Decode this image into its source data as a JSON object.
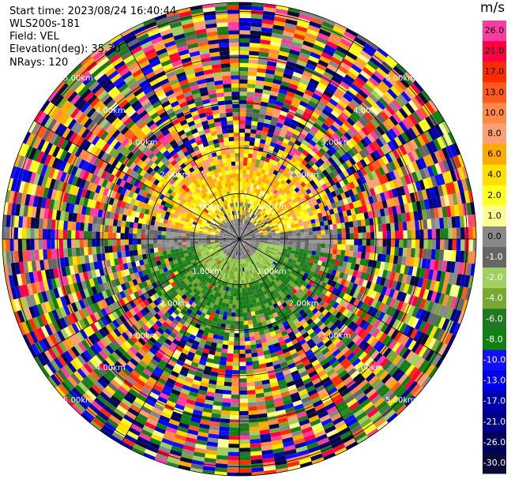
{
  "header": {
    "start_time": "Start time: 2023/08/24 16:40:44",
    "instrument": "WLS200s-181",
    "field": "Field: VEL",
    "elevation": "Elevation(deg): 35.30",
    "nrays": "NRays: 120"
  },
  "chart_data": {
    "type": "heatmap",
    "projection": "polar PPI",
    "title": "",
    "n_rays": 120,
    "range_rings_km": [
      1,
      2,
      3,
      4,
      5
    ],
    "range_ring_labels": [
      "1.00km",
      "2.00km",
      "3.00km",
      "4.00km",
      "5.00km"
    ],
    "max_range_km": 5.2,
    "colorbar": {
      "unit": "m/s",
      "ticks": [
        "26.0",
        "21.0",
        "17.0",
        "13.0",
        "10.0",
        "8.0",
        "6.0",
        "4.0",
        "2.0",
        "1.0",
        "0.0",
        "-1.0",
        "-2.0",
        "-4.0",
        "-6.0",
        "-8.0",
        "-10.0",
        "-13.0",
        "-17.0",
        "-21.0",
        "-26.0",
        "-30.0"
      ],
      "colors": [
        "#ff3aa0",
        "#ff0040",
        "#ff2a00",
        "#ff5a1e",
        "#ff8a46",
        "#ffa070",
        "#ffaa00",
        "#ffe000",
        "#ffff20",
        "#ffff90",
        "#888888",
        "#666666",
        "#a0d060",
        "#78a830",
        "#227722",
        "#108010",
        "#1010ff",
        "#0000ee",
        "#0000aa",
        "#000088",
        "#00005a",
        "#0a0a3a"
      ]
    },
    "near_range_pattern": "gray near 0 at center, yellow/orange positive north, green negative south, noise beyond ~2 km"
  }
}
